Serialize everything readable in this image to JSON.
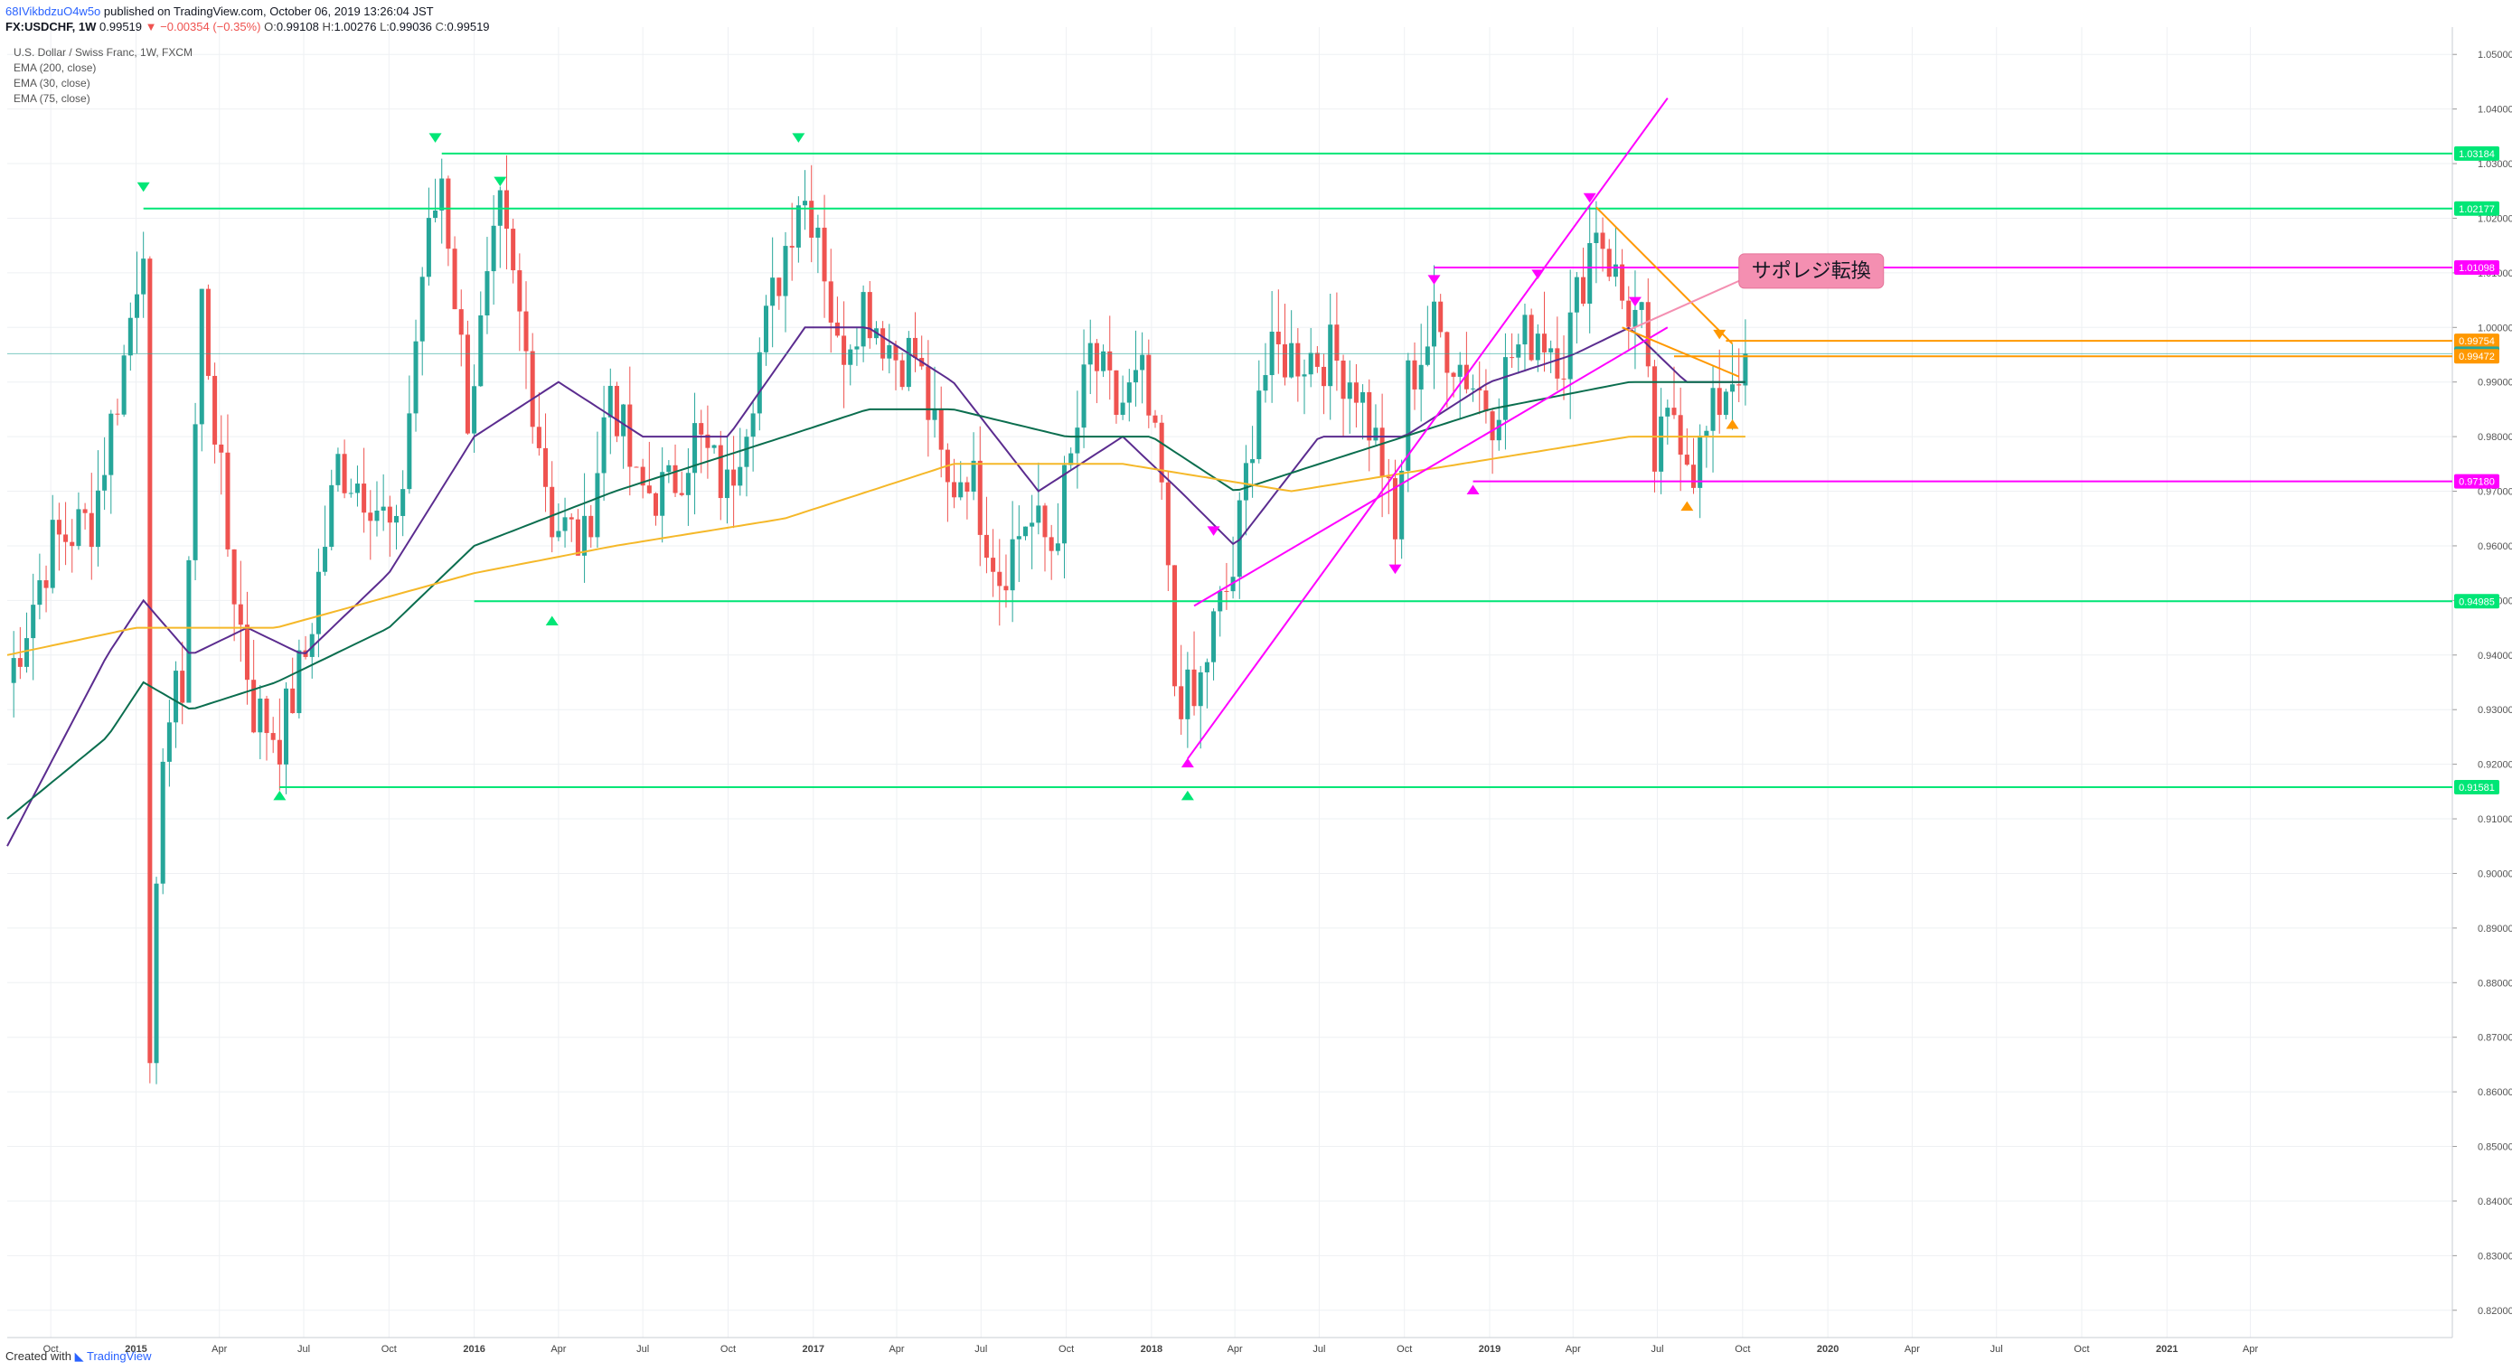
{
  "header": {
    "author": "68IVikbdzuO4w5o",
    "published": "published on TradingView.com, October 06, 2019 13:26:04 JST",
    "symbol": "FX:USDCHF, 1W",
    "last": "0.99519",
    "change": "−0.00354 (−0.35%)",
    "o_label": "O:",
    "o": "0.99108",
    "h_label": "H:",
    "h": "1.00276",
    "l_label": "L:",
    "l": "0.99036",
    "c_label": "C:",
    "c": "0.99519"
  },
  "legend": {
    "title": "U.S. Dollar / Swiss Franc, 1W, FXCM",
    "ema200": "EMA (200, close)",
    "ema30": "EMA (30, close)",
    "ema75": "EMA (75, close)"
  },
  "annotation": {
    "text": "サポレジ転換",
    "color": "#f48fb1"
  },
  "footer": {
    "created": "Created with",
    "brand": "TradingView"
  },
  "colors": {
    "up": "#26a69a",
    "down": "#ef5350",
    "ema200": "#f5b829",
    "ema30": "#5b2c8f",
    "ema75": "#0b6e4f",
    "support": "#00e676",
    "magenta": "#ff00ff",
    "orange": "#ff9800",
    "grid": "#eef0f3",
    "axis": "#555555"
  },
  "chart_data": {
    "type": "candlestick",
    "symbol": "FX:USDCHF",
    "timeframe": "1W",
    "ylim": [
      0.815,
      1.055
    ],
    "xlim": [
      "2014-08-15",
      "2021-11-05"
    ],
    "y_ticks": [
      "1.05000",
      "1.04000",
      "1.03000",
      "1.02000",
      "1.01000",
      "1.00000",
      "0.99000",
      "0.98000",
      "0.97000",
      "0.96000",
      "0.95000",
      "0.94000",
      "0.93000",
      "0.92000",
      "0.91000",
      "0.90000",
      "0.89000",
      "0.88000",
      "0.87000",
      "0.86000",
      "0.85000",
      "0.84000",
      "0.83000",
      "0.82000"
    ],
    "x_ticks": [
      {
        "label": "Oct",
        "date": "2014-10-01"
      },
      {
        "label": "2015",
        "date": "2015-01-01"
      },
      {
        "label": "Apr",
        "date": "2015-04-01"
      },
      {
        "label": "Jul",
        "date": "2015-07-01"
      },
      {
        "label": "Oct",
        "date": "2015-10-01"
      },
      {
        "label": "2016",
        "date": "2016-01-01"
      },
      {
        "label": "Apr",
        "date": "2016-04-01"
      },
      {
        "label": "Jul",
        "date": "2016-07-01"
      },
      {
        "label": "Oct",
        "date": "2016-10-01"
      },
      {
        "label": "2017",
        "date": "2017-01-01"
      },
      {
        "label": "Apr",
        "date": "2017-04-01"
      },
      {
        "label": "Jul",
        "date": "2017-07-01"
      },
      {
        "label": "Oct",
        "date": "2017-10-01"
      },
      {
        "label": "2018",
        "date": "2018-01-01"
      },
      {
        "label": "Apr",
        "date": "2018-04-01"
      },
      {
        "label": "Jul",
        "date": "2018-07-01"
      },
      {
        "label": "Oct",
        "date": "2018-10-01"
      },
      {
        "label": "2019",
        "date": "2019-01-01"
      },
      {
        "label": "Apr",
        "date": "2019-04-01"
      },
      {
        "label": "Jul",
        "date": "2019-07-01"
      },
      {
        "label": "Oct",
        "date": "2019-10-01"
      },
      {
        "label": "2020",
        "date": "2020-01-01"
      },
      {
        "label": "Apr",
        "date": "2020-04-01"
      },
      {
        "label": "Jul",
        "date": "2020-07-01"
      },
      {
        "label": "Oct",
        "date": "2020-10-01"
      },
      {
        "label": "2021",
        "date": "2021-01-01"
      },
      {
        "label": "Apr",
        "date": "2021-04-01"
      }
    ],
    "close_anchors": [
      [
        "2014-08-15",
        0.935
      ],
      [
        "2014-10-01",
        0.96
      ],
      [
        "2014-11-15",
        0.965
      ],
      [
        "2014-12-20",
        0.995
      ],
      [
        "2015-01-09",
        1.018
      ],
      [
        "2015-01-16",
        0.86
      ],
      [
        "2015-01-30",
        0.925
      ],
      [
        "2015-02-20",
        0.935
      ],
      [
        "2015-03-13",
        1.005
      ],
      [
        "2015-04-10",
        0.96
      ],
      [
        "2015-05-08",
        0.93
      ],
      [
        "2015-06-05",
        0.925
      ],
      [
        "2015-07-03",
        0.94
      ],
      [
        "2015-08-07",
        0.975
      ],
      [
        "2015-09-11",
        0.97
      ],
      [
        "2015-10-09",
        0.96
      ],
      [
        "2015-11-06",
        1.01
      ],
      [
        "2015-11-27",
        1.028
      ],
      [
        "2015-12-25",
        0.985
      ],
      [
        "2016-01-29",
        1.02
      ],
      [
        "2016-02-26",
        0.995
      ],
      [
        "2016-03-25",
        0.965
      ],
      [
        "2016-04-29",
        0.96
      ],
      [
        "2016-05-27",
        0.99
      ],
      [
        "2016-06-24",
        0.97
      ],
      [
        "2016-07-29",
        0.97
      ],
      [
        "2016-08-26",
        0.98
      ],
      [
        "2016-09-30",
        0.97
      ],
      [
        "2016-10-28",
        0.99
      ],
      [
        "2016-11-25",
        1.01
      ],
      [
        "2016-12-16",
        1.025
      ],
      [
        "2017-01-06",
        1.02
      ],
      [
        "2017-01-27",
        0.995
      ],
      [
        "2017-02-24",
        1.005
      ],
      [
        "2017-03-31",
        0.995
      ],
      [
        "2017-04-21",
        0.995
      ],
      [
        "2017-05-26",
        0.97
      ],
      [
        "2017-06-16",
        0.975
      ],
      [
        "2017-07-21",
        0.955
      ],
      [
        "2017-08-18",
        0.965
      ],
      [
        "2017-09-15",
        0.96
      ],
      [
        "2017-10-06",
        0.975
      ],
      [
        "2017-10-27",
        0.995
      ],
      [
        "2017-11-24",
        0.985
      ],
      [
        "2017-12-22",
        0.99
      ],
      [
        "2018-01-12",
        0.97
      ],
      [
        "2018-01-26",
        0.935
      ],
      [
        "2018-02-16",
        0.93
      ],
      [
        "2018-03-09",
        0.945
      ],
      [
        "2018-03-30",
        0.955
      ],
      [
        "2018-04-27",
        0.99
      ],
      [
        "2018-05-18",
        0.995
      ],
      [
        "2018-06-15",
        0.995
      ],
      [
        "2018-07-13",
        0.995
      ],
      [
        "2018-08-10",
        0.99
      ],
      [
        "2018-09-07",
        0.975
      ],
      [
        "2018-09-21",
        0.96
      ],
      [
        "2018-10-05",
        0.99
      ],
      [
        "2018-11-02",
        1.0
      ],
      [
        "2018-11-23",
        0.995
      ],
      [
        "2018-12-14",
        0.99
      ],
      [
        "2019-01-04",
        0.985
      ],
      [
        "2019-01-25",
        0.995
      ],
      [
        "2019-02-22",
        1.0
      ],
      [
        "2019-03-22",
        0.995
      ],
      [
        "2019-04-19",
        1.015
      ],
      [
        "2019-04-26",
        1.02
      ],
      [
        "2019-05-24",
        1.005
      ],
      [
        "2019-06-14",
        1.0
      ],
      [
        "2019-06-28",
        0.975
      ],
      [
        "2019-07-19",
        0.985
      ],
      [
        "2019-08-09",
        0.975
      ],
      [
        "2019-08-23",
        0.98
      ],
      [
        "2019-09-13",
        0.99
      ],
      [
        "2019-10-04",
        0.99519
      ]
    ],
    "emas": [
      {
        "name": "EMA (30, close)",
        "color": "#5b2c8f",
        "points": [
          [
            "2014-08-15",
            0.905
          ],
          [
            "2014-12-01",
            0.94
          ],
          [
            "2015-01-09",
            0.95
          ],
          [
            "2015-03-01",
            0.94
          ],
          [
            "2015-05-01",
            0.945
          ],
          [
            "2015-07-01",
            0.94
          ],
          [
            "2015-10-01",
            0.955
          ],
          [
            "2016-01-01",
            0.98
          ],
          [
            "2016-04-01",
            0.99
          ],
          [
            "2016-07-01",
            0.98
          ],
          [
            "2016-10-01",
            0.98
          ],
          [
            "2016-12-23",
            1.0
          ],
          [
            "2017-03-01",
            1.0
          ],
          [
            "2017-06-01",
            0.99
          ],
          [
            "2017-09-01",
            0.97
          ],
          [
            "2017-12-01",
            0.98
          ],
          [
            "2018-02-01",
            0.97
          ],
          [
            "2018-04-01",
            0.96
          ],
          [
            "2018-07-01",
            0.98
          ],
          [
            "2018-10-01",
            0.98
          ],
          [
            "2019-01-01",
            0.99
          ],
          [
            "2019-04-01",
            0.995
          ],
          [
            "2019-06-01",
            1.0
          ],
          [
            "2019-08-01",
            0.99
          ],
          [
            "2019-10-04",
            0.99
          ]
        ]
      },
      {
        "name": "EMA (75, close)",
        "color": "#0b6e4f",
        "points": [
          [
            "2014-08-15",
            0.91
          ],
          [
            "2014-12-01",
            0.925
          ],
          [
            "2015-01-09",
            0.935
          ],
          [
            "2015-03-01",
            0.93
          ],
          [
            "2015-06-01",
            0.935
          ],
          [
            "2015-10-01",
            0.945
          ],
          [
            "2016-01-01",
            0.96
          ],
          [
            "2016-06-01",
            0.97
          ],
          [
            "2016-12-01",
            0.98
          ],
          [
            "2017-03-01",
            0.985
          ],
          [
            "2017-06-01",
            0.985
          ],
          [
            "2017-10-01",
            0.98
          ],
          [
            "2018-01-01",
            0.98
          ],
          [
            "2018-04-01",
            0.97
          ],
          [
            "2018-07-01",
            0.975
          ],
          [
            "2018-10-01",
            0.98
          ],
          [
            "2019-01-01",
            0.985
          ],
          [
            "2019-06-01",
            0.99
          ],
          [
            "2019-10-04",
            0.99
          ]
        ]
      },
      {
        "name": "EMA (200, close)",
        "color": "#f5b829",
        "points": [
          [
            "2014-08-15",
            0.94
          ],
          [
            "2015-01-01",
            0.945
          ],
          [
            "2015-06-01",
            0.945
          ],
          [
            "2016-01-01",
            0.955
          ],
          [
            "2016-06-01",
            0.96
          ],
          [
            "2016-12-01",
            0.965
          ],
          [
            "2017-06-01",
            0.975
          ],
          [
            "2017-12-01",
            0.975
          ],
          [
            "2018-06-01",
            0.97
          ],
          [
            "2018-12-01",
            0.975
          ],
          [
            "2019-06-01",
            0.98
          ],
          [
            "2019-10-04",
            0.98
          ]
        ]
      }
    ],
    "hlines": [
      {
        "label": "1.03184",
        "value": 1.03184,
        "color": "#00e676",
        "from": "2015-11-27"
      },
      {
        "label": "1.02177",
        "value": 1.02177,
        "color": "#00e676",
        "from": "2015-01-09"
      },
      {
        "label": "1.01098",
        "value": 1.01098,
        "color": "#ff00ff",
        "from": "2018-11-02"
      },
      {
        "label": "0.99754",
        "value": 0.99754,
        "color": "#ff9800",
        "from": "2019-09-13"
      },
      {
        "label": "0.99519",
        "value": 0.99519,
        "color": "#26a69a",
        "from": "2014-08-15",
        "thin": true
      },
      {
        "label": "0.99472",
        "value": 0.99472,
        "color": "#ff9800",
        "from": "2019-07-19"
      },
      {
        "label": "0.97180",
        "value": 0.9718,
        "color": "#ff00ff",
        "from": "2018-12-14"
      },
      {
        "label": "0.94985",
        "value": 0.94985,
        "color": "#00e676",
        "from": "2016-01-01"
      },
      {
        "label": "0.91581",
        "value": 0.91581,
        "color": "#00e676",
        "from": "2015-06-05"
      }
    ],
    "trendlines": [
      {
        "color": "#ff00ff",
        "from": [
          "2018-02-09",
          0.921
        ],
        "to": [
          "2019-07-12",
          1.042
        ]
      },
      {
        "color": "#ff00ff",
        "from": [
          "2018-02-16",
          0.949
        ],
        "to": [
          "2019-07-12",
          1.0
        ]
      },
      {
        "color": "#ff9800",
        "from": [
          "2019-04-26",
          1.022
        ],
        "to": [
          "2019-09-20",
          0.997
        ]
      },
      {
        "color": "#ff9800",
        "from": [
          "2019-05-24",
          1.0
        ],
        "to": [
          "2019-09-27",
          0.991
        ]
      }
    ],
    "markers": [
      {
        "date": "2015-01-09",
        "value": 1.026,
        "dir": "down",
        "color": "#00e676"
      },
      {
        "date": "2015-06-05",
        "value": 0.914,
        "dir": "up",
        "color": "#00e676"
      },
      {
        "date": "2015-11-20",
        "value": 1.035,
        "dir": "down",
        "color": "#00e676"
      },
      {
        "date": "2016-01-29",
        "value": 1.027,
        "dir": "down",
        "color": "#00e676"
      },
      {
        "date": "2016-03-25",
        "value": 0.946,
        "dir": "up",
        "color": "#00e676"
      },
      {
        "date": "2016-12-16",
        "value": 1.035,
        "dir": "down",
        "color": "#00e676"
      },
      {
        "date": "2018-02-09",
        "value": 0.914,
        "dir": "up",
        "color": "#00e676"
      },
      {
        "date": "2018-02-09",
        "value": 0.92,
        "dir": "up",
        "color": "#ff00ff"
      },
      {
        "date": "2018-03-09",
        "value": 0.963,
        "dir": "down",
        "color": "#ff00ff"
      },
      {
        "date": "2018-09-21",
        "value": 0.956,
        "dir": "down",
        "color": "#ff00ff"
      },
      {
        "date": "2018-11-02",
        "value": 1.009,
        "dir": "down",
        "color": "#ff00ff"
      },
      {
        "date": "2018-12-14",
        "value": 0.97,
        "dir": "up",
        "color": "#ff00ff"
      },
      {
        "date": "2019-02-22",
        "value": 1.01,
        "dir": "down",
        "color": "#ff00ff"
      },
      {
        "date": "2019-04-19",
        "value": 1.024,
        "dir": "down",
        "color": "#ff00ff"
      },
      {
        "date": "2019-06-07",
        "value": 1.005,
        "dir": "down",
        "color": "#ff00ff"
      },
      {
        "date": "2019-08-02",
        "value": 0.967,
        "dir": "up",
        "color": "#ff9800"
      },
      {
        "date": "2019-09-06",
        "value": 0.999,
        "dir": "down",
        "color": "#ff9800"
      },
      {
        "date": "2019-09-20",
        "value": 0.982,
        "dir": "up",
        "color": "#ff9800"
      }
    ],
    "scale_labels": {
      "main": "0.99519"
    }
  }
}
